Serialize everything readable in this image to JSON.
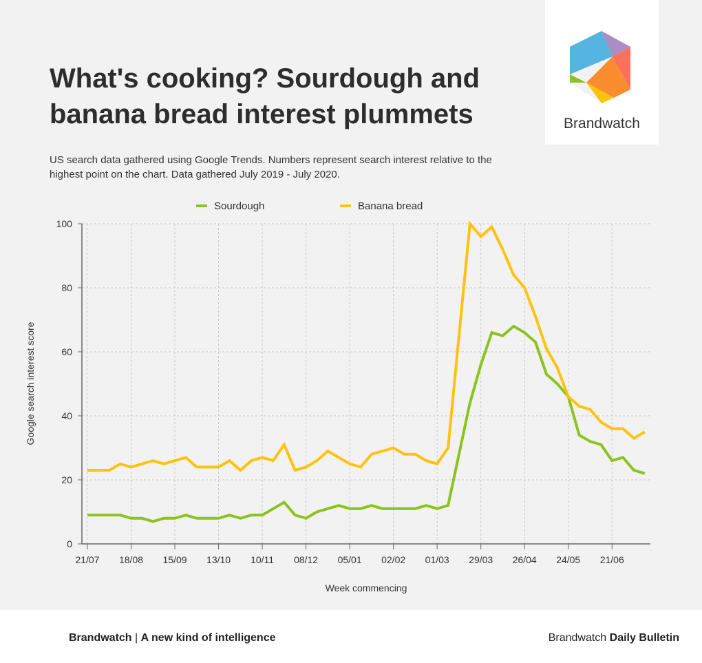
{
  "header": {
    "title": "What's cooking? Sourdough and banana bread interest plummets",
    "subtitle": "US search data gathered using Google Trends. Numbers represent search interest relative to the highest point on the chart. Data gathered July 2019 - July 2020."
  },
  "logo": {
    "name": "Brandwatch"
  },
  "footer": {
    "left_brand": "Brandwatch",
    "left_sep": " | ",
    "left_tag": "A new kind of intelligence",
    "right_prefix": "Brandwatch ",
    "right_bold": "Daily Bulletin"
  },
  "chart_data": {
    "type": "line",
    "xlabel": "Week commencing",
    "ylabel": "Google search interest score",
    "ylim": [
      0,
      100
    ],
    "yticks": [
      0,
      20,
      40,
      60,
      80,
      100
    ],
    "xtick_labels": [
      "21/07",
      "18/08",
      "15/09",
      "13/10",
      "10/11",
      "08/12",
      "05/01",
      "02/02",
      "01/03",
      "29/03",
      "26/04",
      "24/05",
      "21/06"
    ],
    "xtick_every_weeks": 4,
    "grid": true,
    "legend_position": "top",
    "series": [
      {
        "name": "Sourdough",
        "color": "#8dc21f",
        "values": [
          9,
          9,
          9,
          9,
          8,
          8,
          7,
          8,
          8,
          9,
          8,
          8,
          8,
          9,
          8,
          9,
          9,
          11,
          13,
          9,
          8,
          10,
          11,
          12,
          11,
          11,
          12,
          11,
          11,
          11,
          11,
          12,
          11,
          12,
          28,
          44,
          56,
          66,
          65,
          68,
          66,
          63,
          53,
          50,
          46,
          34,
          32,
          31,
          26,
          27,
          23,
          22
        ]
      },
      {
        "name": "Banana bread",
        "color": "#ffc20e",
        "values": [
          23,
          23,
          23,
          25,
          24,
          25,
          26,
          25,
          26,
          27,
          24,
          24,
          24,
          26,
          23,
          26,
          27,
          26,
          31,
          23,
          24,
          26,
          29,
          27,
          25,
          24,
          28,
          29,
          30,
          28,
          28,
          26,
          25,
          30,
          65,
          100,
          96,
          99,
          92,
          84,
          80,
          71,
          61,
          55,
          46,
          43,
          42,
          38,
          36,
          36,
          33,
          35
        ]
      }
    ]
  }
}
